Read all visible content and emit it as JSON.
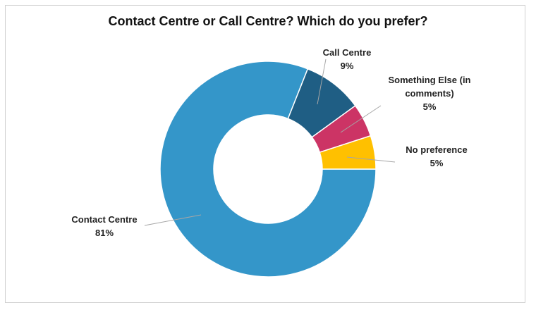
{
  "chart_data": {
    "type": "donut",
    "title": "Contact Centre or Call Centre? Which do you prefer?",
    "categories": [
      "Contact Centre",
      "Call Centre",
      "Something Else (in comments)",
      "No preference"
    ],
    "values": [
      81,
      9,
      5,
      5
    ],
    "value_labels": [
      "81%",
      "9%",
      "5%",
      "5%"
    ],
    "colors": [
      "#3496c9",
      "#1f5e84",
      "#cc3465",
      "#ffc000"
    ]
  }
}
